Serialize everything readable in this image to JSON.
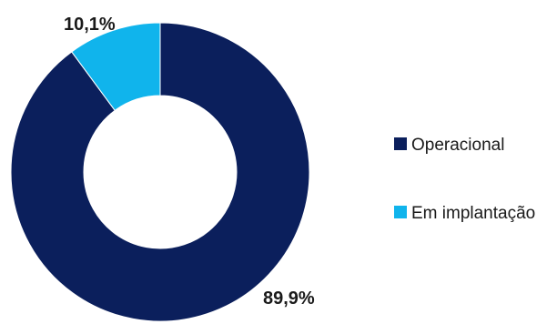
{
  "chart_data": {
    "type": "pie",
    "donut": true,
    "categories": [
      "Operacional",
      "Em implantação"
    ],
    "values": [
      89.9,
      10.1
    ],
    "data_labels": [
      "89,9%",
      "10,1%"
    ],
    "colors": [
      "#0b1f5c",
      "#10b4ec"
    ],
    "legend": {
      "position": "right",
      "entries": [
        "Operacional",
        "Em implantação"
      ]
    }
  }
}
